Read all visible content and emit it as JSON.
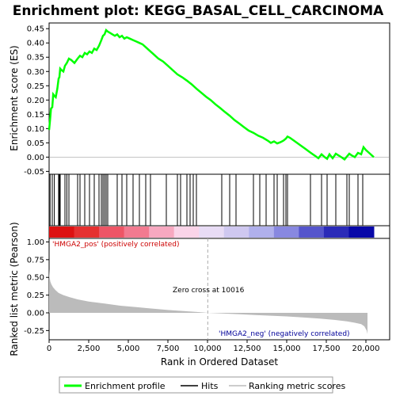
{
  "chart_data": {
    "type": "line",
    "title": "Enrichment plot: KEGG_BASAL_CELL_CARCINOMA",
    "xlabel": "Rank in Ordered Dataset",
    "ylabel_top": "Enrichment score (ES)",
    "ylabel_bottom": "Ranked list metric (Pearson)",
    "xlim": [
      0,
      21500
    ],
    "x_ticks": [
      0,
      2500,
      5000,
      7500,
      10000,
      12500,
      15000,
      17500,
      20000
    ],
    "es_ylim": [
      -0.06,
      0.47
    ],
    "es_ticks": [
      -0.05,
      0.0,
      0.05,
      0.1,
      0.15,
      0.2,
      0.25,
      0.3,
      0.35,
      0.4,
      0.45
    ],
    "metric_ylim": [
      -0.38,
      1.05
    ],
    "metric_ticks": [
      -0.25,
      0.0,
      0.25,
      0.5,
      0.75,
      1.0
    ],
    "series": [
      {
        "name": "Enrichment profile",
        "color": "#00ff00",
        "x": [
          0,
          60,
          120,
          200,
          260,
          330,
          420,
          520,
          600,
          650,
          700,
          780,
          900,
          1000,
          1120,
          1250,
          1400,
          1600,
          1800,
          1950,
          2100,
          2250,
          2400,
          2550,
          2700,
          2850,
          3000,
          3150,
          3300,
          3400,
          3500,
          3600,
          3700,
          3850,
          4000,
          4150,
          4300,
          4450,
          4600,
          4750,
          4900,
          5100,
          5300,
          5500,
          5700,
          5900,
          6100,
          6300,
          6600,
          6900,
          7200,
          7500,
          7800,
          8100,
          8400,
          8700,
          9000,
          9300,
          9600,
          9900,
          10200,
          10500,
          10800,
          11100,
          11400,
          11700,
          12000,
          12300,
          12600,
          12900,
          13200,
          13500,
          13800,
          14000,
          14200,
          14400,
          14600,
          14800,
          14950,
          15050,
          15200,
          15400,
          15600,
          15800,
          16000,
          16200,
          16400,
          16600,
          16800,
          17000,
          17200,
          17400,
          17550,
          17700,
          17900,
          18100,
          18300,
          18500,
          18650,
          18800,
          18950,
          19100,
          19300,
          19500,
          19700,
          19850,
          20000,
          20200,
          20500
        ],
        "values": [
          0.095,
          0.13,
          0.17,
          0.175,
          0.22,
          0.215,
          0.21,
          0.24,
          0.275,
          0.28,
          0.31,
          0.305,
          0.3,
          0.32,
          0.33,
          0.345,
          0.34,
          0.33,
          0.345,
          0.355,
          0.35,
          0.365,
          0.36,
          0.37,
          0.365,
          0.38,
          0.375,
          0.39,
          0.41,
          0.425,
          0.43,
          0.445,
          0.44,
          0.435,
          0.43,
          0.425,
          0.43,
          0.42,
          0.425,
          0.415,
          0.42,
          0.415,
          0.41,
          0.405,
          0.4,
          0.395,
          0.385,
          0.375,
          0.36,
          0.345,
          0.335,
          0.32,
          0.305,
          0.29,
          0.28,
          0.268,
          0.255,
          0.24,
          0.226,
          0.212,
          0.2,
          0.185,
          0.172,
          0.158,
          0.145,
          0.13,
          0.118,
          0.105,
          0.093,
          0.085,
          0.075,
          0.068,
          0.058,
          0.05,
          0.055,
          0.048,
          0.052,
          0.058,
          0.065,
          0.072,
          0.068,
          0.06,
          0.052,
          0.044,
          0.036,
          0.028,
          0.02,
          0.012,
          0.004,
          -0.004,
          0.01,
          0.0,
          -0.006,
          0.01,
          -0.004,
          0.012,
          0.005,
          -0.002,
          -0.008,
          0.002,
          0.012,
          0.006,
          0.0,
          0.015,
          0.01,
          0.035,
          0.025,
          0.015,
          0.0
        ]
      },
      {
        "name": "Hits",
        "color": "#000000",
        "x": [
          60,
          200,
          330,
          600,
          650,
          700,
          1000,
          1120,
          1250,
          1800,
          1950,
          2250,
          2550,
          2850,
          3150,
          3300,
          3400,
          3500,
          3600,
          3700,
          4300,
          4600,
          4900,
          5300,
          5700,
          6100,
          6400,
          7400,
          8100,
          8300,
          8700,
          8900,
          9100,
          9300,
          10900,
          11400,
          11800,
          12900,
          13300,
          13700,
          14200,
          14400,
          14800,
          14950,
          15050,
          16500,
          17200,
          17550,
          18100,
          18800,
          18950,
          19500,
          19800
        ]
      },
      {
        "name": "Ranking metric scores",
        "color": "#bbbbbb",
        "x": [
          0,
          30,
          80,
          150,
          250,
          400,
          600,
          900,
          1300,
          1800,
          2500,
          3500,
          4500,
          5500,
          6500,
          7500,
          8500,
          9500,
          10016,
          11000,
          12000,
          13000,
          14000,
          15000,
          16000,
          17000,
          18000,
          18800,
          19300,
          19700,
          19900,
          20050,
          20100
        ],
        "values": [
          0.62,
          0.5,
          0.44,
          0.4,
          0.36,
          0.32,
          0.28,
          0.25,
          0.22,
          0.19,
          0.16,
          0.13,
          0.1,
          0.08,
          0.06,
          0.04,
          0.025,
          0.01,
          0.0,
          -0.01,
          -0.02,
          -0.03,
          -0.04,
          -0.05,
          -0.065,
          -0.08,
          -0.1,
          -0.12,
          -0.14,
          -0.16,
          -0.19,
          -0.25,
          -0.3
        ]
      }
    ],
    "heatbar_colors": [
      "#dd1111",
      "#e53030",
      "#ee5566",
      "#f27a90",
      "#f7a8c0",
      "#fad4e8",
      "#e8dcf5",
      "#cfc8f0",
      "#b0b0ec",
      "#8888e0",
      "#5555cc",
      "#2a2ab8",
      "#0808a8"
    ],
    "annotations": {
      "pos_label": "'HMGA2_pos' (positively correlated)",
      "neg_label": "'HMGA2_neg' (negatively correlated)",
      "zero_cross": "Zero cross at 10016",
      "zero_cross_x": 10016
    },
    "legend_placement": "bottom",
    "grid": false
  }
}
